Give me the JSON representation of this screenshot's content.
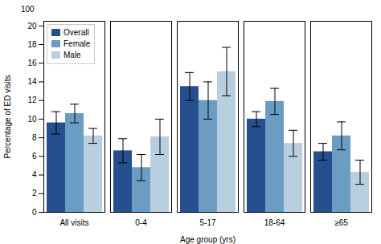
{
  "chart_data": {
    "type": "bar",
    "categories": [
      "All visits",
      "0-4",
      "5-17",
      "18-64",
      "≥65"
    ],
    "series": [
      {
        "name": "Overall",
        "color": "#254f8f",
        "values": [
          9.6,
          6.6,
          13.5,
          10.0,
          6.5
        ],
        "errors": [
          1.2,
          1.3,
          1.5,
          0.8,
          0.9
        ]
      },
      {
        "name": "Female",
        "color": "#6b9dc2",
        "values": [
          10.6,
          4.8,
          12.0,
          11.9,
          8.2
        ],
        "errors": [
          1.0,
          1.4,
          2.0,
          1.4,
          1.5
        ]
      },
      {
        "name": "Male",
        "color": "#b8cfe0",
        "values": [
          8.2,
          8.1,
          15.1,
          7.4,
          4.3
        ],
        "errors": [
          0.8,
          1.9,
          2.6,
          1.4,
          1.3
        ]
      }
    ],
    "xlabel": "Age group (yrs)",
    "ylabel": "Percentage of ED visits",
    "ylim": [
      0,
      20.5
    ],
    "yticks": [
      0,
      2,
      4,
      6,
      8,
      10,
      12,
      14,
      16,
      18,
      20
    ],
    "legend": "upper left",
    "annotations": [
      "100"
    ]
  }
}
